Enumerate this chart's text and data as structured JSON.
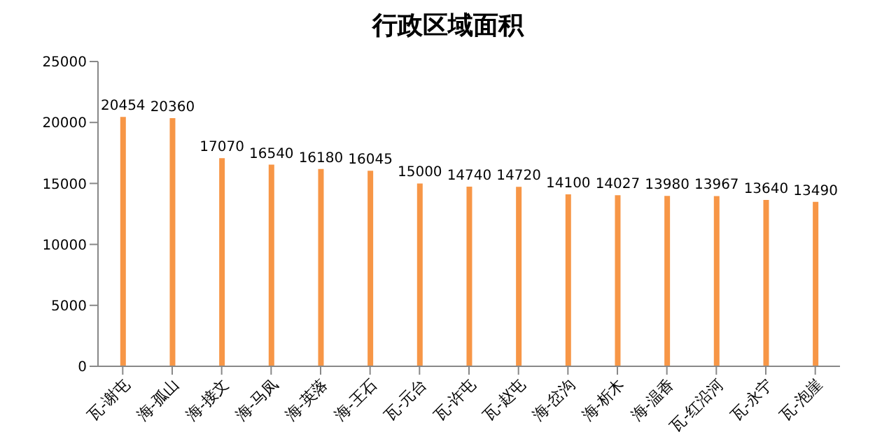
{
  "chart_data": {
    "type": "bar",
    "title": "行政区域面积",
    "categories": [
      "瓦-谢屯",
      "海-孤山",
      "海-接文",
      "海-马凤",
      "海-英落",
      "海-王石",
      "瓦-元台",
      "瓦-许屯",
      "瓦-赵屯",
      "海-岔沟",
      "海-析木",
      "海-温香",
      "瓦-红沿河",
      "瓦-永宁",
      "瓦-泡崖"
    ],
    "values": [
      20454,
      20360,
      17070,
      16540,
      16180,
      16045,
      15000,
      14740,
      14720,
      14100,
      14027,
      13980,
      13967,
      13640,
      13490
    ],
    "color": "#f79646",
    "ylim": [
      0,
      25000
    ],
    "yticks": [
      0,
      5000,
      10000,
      15000,
      20000,
      25000
    ],
    "grid": false,
    "data_labels": true
  }
}
